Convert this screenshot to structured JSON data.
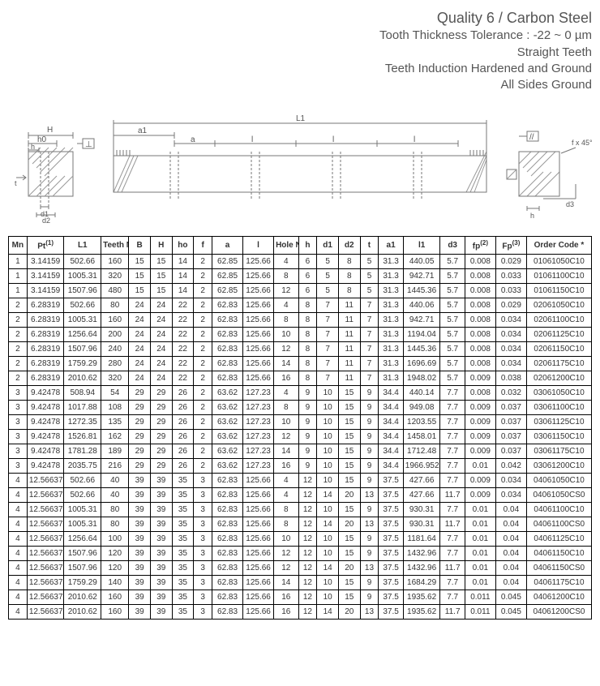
{
  "header": {
    "line1": "Quality 6  / Carbon Steel",
    "line2": "Tooth Thickness Tolerance : -22 ~ 0 µm",
    "line3": "Straight Teeth",
    "line4": "Teeth Induction Hardened and Ground",
    "line5": "All Sides Ground"
  },
  "diagram": {
    "labels": {
      "H": "H",
      "h0": "h0",
      "h": "h",
      "d1": "d1",
      "d2": "d2",
      "L1": "L1",
      "a1": "a1",
      "a": "a",
      "l": "l",
      "l2": "l",
      "l3": "l",
      "t": "t",
      "f45": "f x 45°",
      "d3": "d3",
      "h_r": "h",
      "para": "//",
      "perp": "⊥"
    },
    "colors": {
      "stroke": "#777777",
      "hatch": "#999999",
      "text": "#555555",
      "bg": "#ffffff"
    }
  },
  "table": {
    "columns": [
      "Mn",
      "Pt(1)",
      "L1",
      "Teeth No.",
      "B",
      "H",
      "ho",
      "f",
      "a",
      "l",
      "Hole No.",
      "h",
      "d1",
      "d2",
      "t",
      "a1",
      "l1",
      "d3",
      "fp(2)",
      "Fp(3)",
      "Order Code *"
    ],
    "col_widths_pct": [
      3,
      6,
      6,
      4.5,
      3.5,
      3.5,
      3.5,
      3,
      5,
      5,
      4,
      3,
      3.5,
      3.5,
      3,
      4,
      6,
      4,
      5,
      5,
      10.5
    ],
    "rows": [
      [
        "1",
        "3.14159",
        "502.66",
        "160",
        "15",
        "15",
        "14",
        "2",
        "62.85",
        "125.66",
        "4",
        "6",
        "5",
        "8",
        "5",
        "31.3",
        "440.05",
        "5.7",
        "0.008",
        "0.029",
        "01061050C10"
      ],
      [
        "1",
        "3.14159",
        "1005.31",
        "320",
        "15",
        "15",
        "14",
        "2",
        "62.85",
        "125.66",
        "8",
        "6",
        "5",
        "8",
        "5",
        "31.3",
        "942.71",
        "5.7",
        "0.008",
        "0.033",
        "01061100C10"
      ],
      [
        "1",
        "3.14159",
        "1507.96",
        "480",
        "15",
        "15",
        "14",
        "2",
        "62.85",
        "125.66",
        "12",
        "6",
        "5",
        "8",
        "5",
        "31.3",
        "1445.36",
        "5.7",
        "0.008",
        "0.033",
        "01061150C10"
      ],
      [
        "2",
        "6.28319",
        "502.66",
        "80",
        "24",
        "24",
        "22",
        "2",
        "62.83",
        "125.66",
        "4",
        "8",
        "7",
        "11",
        "7",
        "31.3",
        "440.06",
        "5.7",
        "0.008",
        "0.029",
        "02061050C10"
      ],
      [
        "2",
        "6.28319",
        "1005.31",
        "160",
        "24",
        "24",
        "22",
        "2",
        "62.83",
        "125.66",
        "8",
        "8",
        "7",
        "11",
        "7",
        "31.3",
        "942.71",
        "5.7",
        "0.008",
        "0.034",
        "02061100C10"
      ],
      [
        "2",
        "6.28319",
        "1256.64",
        "200",
        "24",
        "24",
        "22",
        "2",
        "62.83",
        "125.66",
        "10",
        "8",
        "7",
        "11",
        "7",
        "31.3",
        "1194.04",
        "5.7",
        "0.008",
        "0.034",
        "02061125C10"
      ],
      [
        "2",
        "6.28319",
        "1507.96",
        "240",
        "24",
        "24",
        "22",
        "2",
        "62.83",
        "125.66",
        "12",
        "8",
        "7",
        "11",
        "7",
        "31.3",
        "1445.36",
        "5.7",
        "0.008",
        "0.034",
        "02061150C10"
      ],
      [
        "2",
        "6.28319",
        "1759.29",
        "280",
        "24",
        "24",
        "22",
        "2",
        "62.83",
        "125.66",
        "14",
        "8",
        "7",
        "11",
        "7",
        "31.3",
        "1696.69",
        "5.7",
        "0.008",
        "0.034",
        "02061175C10"
      ],
      [
        "2",
        "6.28319",
        "2010.62",
        "320",
        "24",
        "24",
        "22",
        "2",
        "62.83",
        "125.66",
        "16",
        "8",
        "7",
        "11",
        "7",
        "31.3",
        "1948.02",
        "5.7",
        "0.009",
        "0.038",
        "02061200C10"
      ],
      [
        "3",
        "9.42478",
        "508.94",
        "54",
        "29",
        "29",
        "26",
        "2",
        "63.62",
        "127.23",
        "4",
        "9",
        "10",
        "15",
        "9",
        "34.4",
        "440.14",
        "7.7",
        "0.008",
        "0.032",
        "03061050C10"
      ],
      [
        "3",
        "9.42478",
        "1017.88",
        "108",
        "29",
        "29",
        "26",
        "2",
        "63.62",
        "127.23",
        "8",
        "9",
        "10",
        "15",
        "9",
        "34.4",
        "949.08",
        "7.7",
        "0.009",
        "0.037",
        "03061100C10"
      ],
      [
        "3",
        "9.42478",
        "1272.35",
        "135",
        "29",
        "29",
        "26",
        "2",
        "63.62",
        "127.23",
        "10",
        "9",
        "10",
        "15",
        "9",
        "34.4",
        "1203.55",
        "7.7",
        "0.009",
        "0.037",
        "03061125C10"
      ],
      [
        "3",
        "9.42478",
        "1526.81",
        "162",
        "29",
        "29",
        "26",
        "2",
        "63.62",
        "127.23",
        "12",
        "9",
        "10",
        "15",
        "9",
        "34.4",
        "1458.01",
        "7.7",
        "0.009",
        "0.037",
        "03061150C10"
      ],
      [
        "3",
        "9.42478",
        "1781.28",
        "189",
        "29",
        "29",
        "26",
        "2",
        "63.62",
        "127.23",
        "14",
        "9",
        "10",
        "15",
        "9",
        "34.4",
        "1712.48",
        "7.7",
        "0.009",
        "0.037",
        "03061175C10"
      ],
      [
        "3",
        "9.42478",
        "2035.75",
        "216",
        "29",
        "29",
        "26",
        "2",
        "63.62",
        "127.23",
        "16",
        "9",
        "10",
        "15",
        "9",
        "34.4",
        "1966.952",
        "7.7",
        "0.01",
        "0.042",
        "03061200C10"
      ],
      [
        "4",
        "12.56637",
        "502.66",
        "40",
        "39",
        "39",
        "35",
        "3",
        "62.83",
        "125.66",
        "4",
        "12",
        "10",
        "15",
        "9",
        "37.5",
        "427.66",
        "7.7",
        "0.009",
        "0.034",
        "04061050C10"
      ],
      [
        "4",
        "12.56637",
        "502.66",
        "40",
        "39",
        "39",
        "35",
        "3",
        "62.83",
        "125.66",
        "4",
        "12",
        "14",
        "20",
        "13",
        "37.5",
        "427.66",
        "11.7",
        "0.009",
        "0.034",
        "04061050CS0"
      ],
      [
        "4",
        "12.56637",
        "1005.31",
        "80",
        "39",
        "39",
        "35",
        "3",
        "62.83",
        "125.66",
        "8",
        "12",
        "10",
        "15",
        "9",
        "37.5",
        "930.31",
        "7.7",
        "0.01",
        "0.04",
        "04061100C10"
      ],
      [
        "4",
        "12.56637",
        "1005.31",
        "80",
        "39",
        "39",
        "35",
        "3",
        "62.83",
        "125.66",
        "8",
        "12",
        "14",
        "20",
        "13",
        "37.5",
        "930.31",
        "11.7",
        "0.01",
        "0.04",
        "04061100CS0"
      ],
      [
        "4",
        "12.56637",
        "1256.64",
        "100",
        "39",
        "39",
        "35",
        "3",
        "62.83",
        "125.66",
        "10",
        "12",
        "10",
        "15",
        "9",
        "37.5",
        "1181.64",
        "7.7",
        "0.01",
        "0.04",
        "04061125C10"
      ],
      [
        "4",
        "12.56637",
        "1507.96",
        "120",
        "39",
        "39",
        "35",
        "3",
        "62.83",
        "125.66",
        "12",
        "12",
        "10",
        "15",
        "9",
        "37.5",
        "1432.96",
        "7.7",
        "0.01",
        "0.04",
        "04061150C10"
      ],
      [
        "4",
        "12.56637",
        "1507.96",
        "120",
        "39",
        "39",
        "35",
        "3",
        "62.83",
        "125.66",
        "12",
        "12",
        "14",
        "20",
        "13",
        "37.5",
        "1432.96",
        "11.7",
        "0.01",
        "0.04",
        "04061150CS0"
      ],
      [
        "4",
        "12.56637",
        "1759.29",
        "140",
        "39",
        "39",
        "35",
        "3",
        "62.83",
        "125.66",
        "14",
        "12",
        "10",
        "15",
        "9",
        "37.5",
        "1684.29",
        "7.7",
        "0.01",
        "0.04",
        "04061175C10"
      ],
      [
        "4",
        "12.56637",
        "2010.62",
        "160",
        "39",
        "39",
        "35",
        "3",
        "62.83",
        "125.66",
        "16",
        "12",
        "10",
        "15",
        "9",
        "37.5",
        "1935.62",
        "7.7",
        "0.011",
        "0.045",
        "04061200C10"
      ],
      [
        "4",
        "12.56637",
        "2010.62",
        "160",
        "39",
        "39",
        "35",
        "3",
        "62.83",
        "125.66",
        "16",
        "12",
        "14",
        "20",
        "13",
        "37.5",
        "1935.62",
        "11.7",
        "0.011",
        "0.045",
        "04061200CS0"
      ]
    ]
  }
}
